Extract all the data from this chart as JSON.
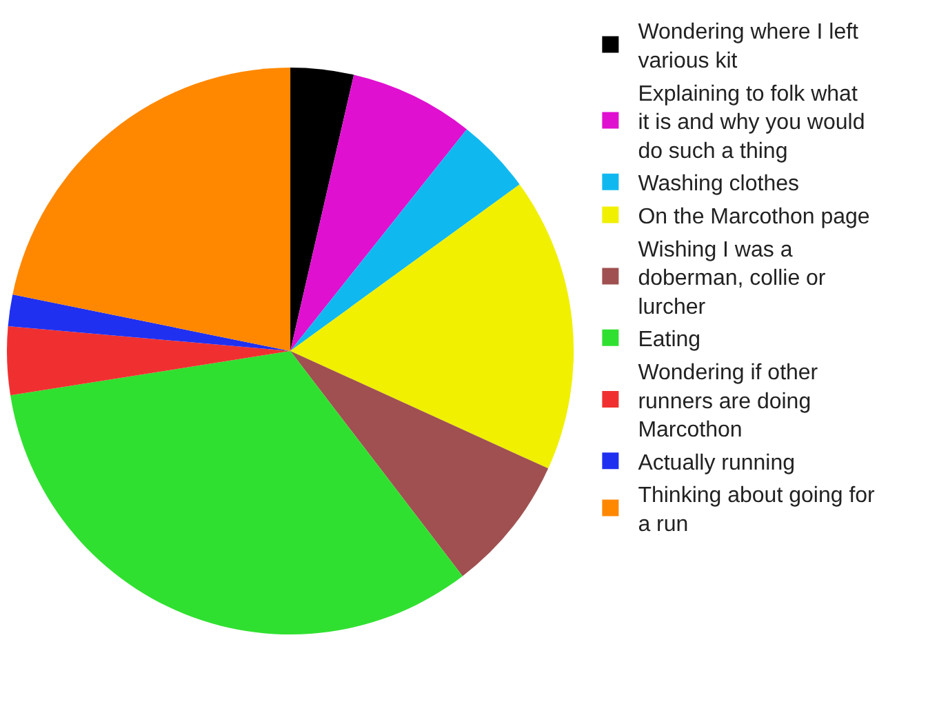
{
  "chart_data": {
    "type": "pie",
    "categories": [
      "Wondering where I left various kit",
      "Explaining to folk what it is and why you would do such a thing",
      "Washing clothes",
      "On the Marcothon page",
      "Wishing I was a doberman, collie or lurcher",
      "Eating",
      "Wondering if other runners are doing Marcothon",
      "Actually running",
      "Thinking about going for a run"
    ],
    "values": [
      3.6,
      7.1,
      4.3,
      16.8,
      7.8,
      32.9,
      3.9,
      1.8,
      21.8
    ],
    "colors": [
      "#000000",
      "#e010d0",
      "#10b8f0",
      "#f0f000",
      "#a05050",
      "#30e030",
      "#f03030",
      "#2030f0",
      "#ff8800"
    ],
    "legend": "right"
  }
}
